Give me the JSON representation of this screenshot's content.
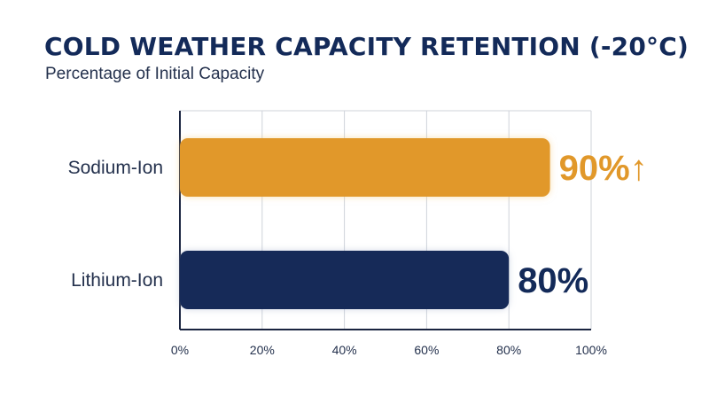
{
  "chart_data": {
    "type": "bar",
    "orientation": "horizontal",
    "title": "COLD WEATHER CAPACITY RETENTION (-20°C)",
    "subtitle": "Percentage of Initial Capacity",
    "categories": [
      "Sodium-Ion",
      "Lithium-Ion"
    ],
    "values": [
      90,
      80
    ],
    "value_labels": [
      "90%↑",
      "80%"
    ],
    "bar_colors": [
      "#e1982a",
      "#132a59"
    ],
    "label_colors": [
      "#e1982a",
      "#132a59"
    ],
    "xlim": [
      0,
      100
    ],
    "x_ticks": [
      "0%",
      "20%",
      "40%",
      "60%",
      "80%",
      "100%"
    ],
    "grid": true,
    "legend": "none"
  },
  "colors": {
    "title": "#132a59",
    "text": "#24314d",
    "grid": "#cfd3da",
    "axis": "#1a2440"
  }
}
